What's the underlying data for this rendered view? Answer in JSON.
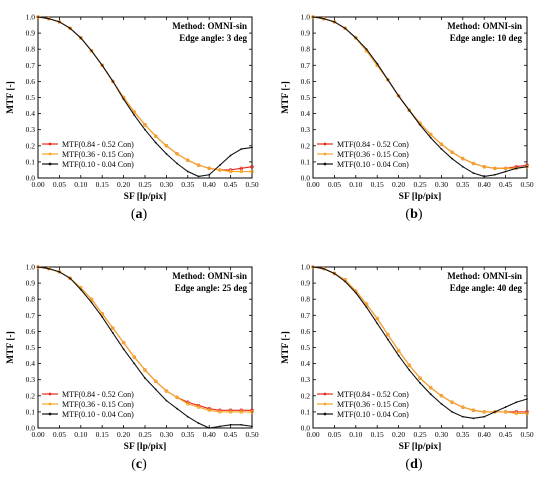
{
  "figure": {
    "panels": [
      {
        "label": "(a)",
        "method": "Method: OMNI-sin",
        "edge": "Edge angle: 3 deg"
      },
      {
        "label": "(b)",
        "method": "Method: OMNI-sin",
        "edge": "Edge angle: 10 deg"
      },
      {
        "label": "(c)",
        "method": "Method: OMNI-sin",
        "edge": "Edge angle: 25 deg"
      },
      {
        "label": "(d)",
        "method": "Method: OMNI-sin",
        "edge": "Edge angle: 40 deg"
      }
    ]
  },
  "chart_data": [
    {
      "type": "line",
      "title": "",
      "annotations": [
        "Method: OMNI-sin",
        "Edge angle: 3 deg"
      ],
      "xlabel": "SF [lp/pix]",
      "ylabel": "MTF [-]",
      "xlim": [
        0,
        0.5
      ],
      "ylim": [
        0,
        1
      ],
      "xticks": [
        "0.00",
        "0.05",
        "0.10",
        "0.15",
        "0.20",
        "0.25",
        "0.30",
        "0.35",
        "0.40",
        "0.45",
        "0.50"
      ],
      "yticks": [
        "0.0",
        "0.1",
        "0.2",
        "0.3",
        "0.4",
        "0.5",
        "0.6",
        "0.7",
        "0.8",
        "0.9",
        "1.0"
      ],
      "legend_position": "bottom-left",
      "x": [
        0.0,
        0.025,
        0.05,
        0.075,
        0.1,
        0.125,
        0.15,
        0.175,
        0.2,
        0.225,
        0.25,
        0.275,
        0.3,
        0.325,
        0.35,
        0.375,
        0.4,
        0.425,
        0.45,
        0.475,
        0.5
      ],
      "series": [
        {
          "name": "MTF(0.84 - 0.52 Con)",
          "color": "#e8281c",
          "values": [
            1.0,
            0.99,
            0.97,
            0.93,
            0.87,
            0.79,
            0.7,
            0.6,
            0.5,
            0.41,
            0.33,
            0.26,
            0.2,
            0.15,
            0.11,
            0.08,
            0.06,
            0.05,
            0.05,
            0.06,
            0.07
          ]
        },
        {
          "name": "MTF(0.36 - 0.15 Con)",
          "color": "#f5a623",
          "values": [
            1.0,
            0.99,
            0.97,
            0.93,
            0.87,
            0.79,
            0.7,
            0.6,
            0.5,
            0.41,
            0.33,
            0.26,
            0.2,
            0.15,
            0.11,
            0.08,
            0.06,
            0.05,
            0.04,
            0.04,
            0.04
          ]
        },
        {
          "name": "MTF(0.10 - 0.04 Con)",
          "color": "#111111",
          "values": [
            1.0,
            0.99,
            0.97,
            0.93,
            0.87,
            0.79,
            0.7,
            0.6,
            0.49,
            0.39,
            0.3,
            0.22,
            0.15,
            0.09,
            0.04,
            0.01,
            0.02,
            0.08,
            0.14,
            0.18,
            0.19
          ]
        }
      ]
    },
    {
      "type": "line",
      "title": "",
      "annotations": [
        "Method: OMNI-sin",
        "Edge angle: 10 deg"
      ],
      "xlabel": "SF [lp/pix]",
      "ylabel": "MTF [-]",
      "xlim": [
        0,
        0.5
      ],
      "ylim": [
        0,
        1
      ],
      "xticks": [
        "0.00",
        "0.05",
        "0.10",
        "0.15",
        "0.20",
        "0.25",
        "0.30",
        "0.35",
        "0.40",
        "0.45",
        "0.50"
      ],
      "yticks": [
        "0.0",
        "0.1",
        "0.2",
        "0.3",
        "0.4",
        "0.5",
        "0.6",
        "0.7",
        "0.8",
        "0.9",
        "1.0"
      ],
      "legend_position": "bottom-left",
      "x": [
        0.0,
        0.025,
        0.05,
        0.075,
        0.1,
        0.125,
        0.15,
        0.175,
        0.2,
        0.225,
        0.25,
        0.275,
        0.3,
        0.325,
        0.35,
        0.375,
        0.4,
        0.425,
        0.45,
        0.475,
        0.5
      ],
      "series": [
        {
          "name": "MTF(0.84 - 0.52 Con)",
          "color": "#e8281c",
          "values": [
            1.0,
            0.99,
            0.97,
            0.93,
            0.87,
            0.79,
            0.7,
            0.61,
            0.51,
            0.42,
            0.34,
            0.27,
            0.21,
            0.16,
            0.12,
            0.09,
            0.07,
            0.06,
            0.06,
            0.07,
            0.08
          ]
        },
        {
          "name": "MTF(0.36 - 0.15 Con)",
          "color": "#f5a623",
          "values": [
            1.0,
            0.99,
            0.97,
            0.93,
            0.87,
            0.79,
            0.7,
            0.61,
            0.51,
            0.42,
            0.34,
            0.27,
            0.21,
            0.16,
            0.12,
            0.09,
            0.07,
            0.06,
            0.06,
            0.06,
            0.07
          ]
        },
        {
          "name": "MTF(0.10 - 0.04 Con)",
          "color": "#111111",
          "values": [
            1.0,
            0.99,
            0.97,
            0.93,
            0.87,
            0.8,
            0.71,
            0.61,
            0.51,
            0.42,
            0.33,
            0.25,
            0.18,
            0.12,
            0.07,
            0.03,
            0.01,
            0.02,
            0.04,
            0.06,
            0.07
          ]
        }
      ]
    },
    {
      "type": "line",
      "title": "",
      "annotations": [
        "Method: OMNI-sin",
        "Edge angle: 25 deg"
      ],
      "xlabel": "SF [lp/pix]",
      "ylabel": "MTF [-]",
      "xlim": [
        0,
        0.5
      ],
      "ylim": [
        0,
        1
      ],
      "xticks": [
        "0.00",
        "0.05",
        "0.10",
        "0.15",
        "0.20",
        "0.25",
        "0.30",
        "0.35",
        "0.40",
        "0.45",
        "0.50"
      ],
      "yticks": [
        "0.0",
        "0.1",
        "0.2",
        "0.3",
        "0.4",
        "0.5",
        "0.6",
        "0.7",
        "0.8",
        "0.9",
        "1.0"
      ],
      "legend_position": "bottom-left",
      "x": [
        0.0,
        0.025,
        0.05,
        0.075,
        0.1,
        0.125,
        0.15,
        0.175,
        0.2,
        0.225,
        0.25,
        0.275,
        0.3,
        0.325,
        0.35,
        0.375,
        0.4,
        0.425,
        0.45,
        0.475,
        0.5
      ],
      "series": [
        {
          "name": "MTF(0.84 - 0.52 Con)",
          "color": "#e8281c",
          "values": [
            1.0,
            0.99,
            0.97,
            0.93,
            0.87,
            0.8,
            0.71,
            0.62,
            0.53,
            0.44,
            0.36,
            0.29,
            0.23,
            0.19,
            0.16,
            0.14,
            0.12,
            0.11,
            0.11,
            0.11,
            0.11
          ]
        },
        {
          "name": "MTF(0.36 - 0.15 Con)",
          "color": "#f5a623",
          "values": [
            1.0,
            0.99,
            0.97,
            0.93,
            0.87,
            0.8,
            0.71,
            0.62,
            0.53,
            0.44,
            0.36,
            0.29,
            0.23,
            0.19,
            0.15,
            0.13,
            0.11,
            0.1,
            0.1,
            0.1,
            0.1
          ]
        },
        {
          "name": "MTF(0.10 - 0.04 Con)",
          "color": "#111111",
          "values": [
            1.0,
            0.99,
            0.97,
            0.93,
            0.86,
            0.78,
            0.69,
            0.59,
            0.49,
            0.4,
            0.31,
            0.24,
            0.17,
            0.12,
            0.07,
            0.03,
            0.0,
            0.01,
            0.02,
            0.02,
            0.01
          ]
        }
      ]
    },
    {
      "type": "line",
      "title": "",
      "annotations": [
        "Method: OMNI-sin",
        "Edge angle: 40 deg"
      ],
      "xlabel": "SF [lp/pix]",
      "ylabel": "MTF [-]",
      "xlim": [
        0,
        0.5
      ],
      "ylim": [
        0,
        1
      ],
      "xticks": [
        "0.00",
        "0.05",
        "0.10",
        "0.15",
        "0.20",
        "0.25",
        "0.30",
        "0.35",
        "0.40",
        "0.45",
        "0.50"
      ],
      "yticks": [
        "0.0",
        "0.1",
        "0.2",
        "0.3",
        "0.4",
        "0.5",
        "0.6",
        "0.7",
        "0.8",
        "0.9",
        "1.0"
      ],
      "legend_position": "bottom-left",
      "x": [
        0.0,
        0.025,
        0.05,
        0.075,
        0.1,
        0.125,
        0.15,
        0.175,
        0.2,
        0.225,
        0.25,
        0.275,
        0.3,
        0.325,
        0.35,
        0.375,
        0.4,
        0.425,
        0.45,
        0.475,
        0.5
      ],
      "series": [
        {
          "name": "MTF(0.84 - 0.52 Con)",
          "color": "#e8281c",
          "values": [
            1.0,
            0.99,
            0.96,
            0.92,
            0.85,
            0.77,
            0.68,
            0.58,
            0.48,
            0.39,
            0.31,
            0.25,
            0.2,
            0.16,
            0.13,
            0.11,
            0.1,
            0.1,
            0.1,
            0.1,
            0.1
          ]
        },
        {
          "name": "MTF(0.36 - 0.15 Con)",
          "color": "#f5a623",
          "values": [
            1.0,
            0.99,
            0.96,
            0.92,
            0.85,
            0.77,
            0.68,
            0.58,
            0.48,
            0.39,
            0.31,
            0.25,
            0.2,
            0.16,
            0.13,
            0.11,
            0.1,
            0.1,
            0.1,
            0.09,
            0.09
          ]
        },
        {
          "name": "MTF(0.10 - 0.04 Con)",
          "color": "#111111",
          "values": [
            1.0,
            0.99,
            0.96,
            0.91,
            0.84,
            0.75,
            0.65,
            0.55,
            0.45,
            0.36,
            0.28,
            0.21,
            0.15,
            0.1,
            0.07,
            0.06,
            0.07,
            0.1,
            0.13,
            0.16,
            0.18
          ]
        }
      ]
    }
  ]
}
